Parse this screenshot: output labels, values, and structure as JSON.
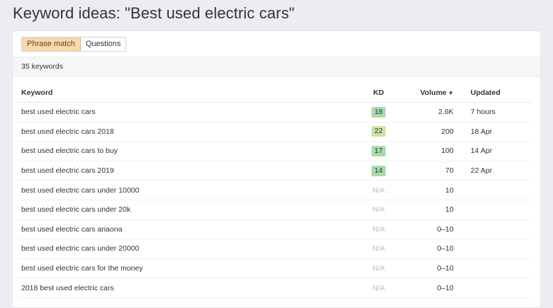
{
  "page": {
    "title": "Keyword ideas: \"Best used electric cars\""
  },
  "tabs": [
    {
      "label": "Phrase match",
      "active": true
    },
    {
      "label": "Questions",
      "active": false
    }
  ],
  "summary": {
    "count_text": "35 keywords"
  },
  "table": {
    "headers": {
      "keyword": "Keyword",
      "kd": "KD",
      "volume": "Volume",
      "volume_sort_icon": "caret-down-icon",
      "updated": "Updated"
    },
    "rows": [
      {
        "keyword": "best used electric cars",
        "kd": "18",
        "kd_color": "#a8dcae",
        "volume": "2.6K",
        "volume_muted": false,
        "updated": "7 hours"
      },
      {
        "keyword": "best used electric cars 2018",
        "kd": "22",
        "kd_color": "#cfe4a1",
        "volume": "200",
        "volume_muted": false,
        "updated": "18 Apr"
      },
      {
        "keyword": "best used electric cars to buy",
        "kd": "17",
        "kd_color": "#a8dcae",
        "volume": "100",
        "volume_muted": false,
        "updated": "14 Apr"
      },
      {
        "keyword": "best used electric cars 2019",
        "kd": "14",
        "kd_color": "#a8dcae",
        "volume": "70",
        "volume_muted": false,
        "updated": "22 Apr"
      },
      {
        "keyword": "best used electric cars under 10000",
        "kd": "N/A",
        "kd_color": "",
        "volume": "10",
        "volume_muted": false,
        "updated": ""
      },
      {
        "keyword": "best used electric cars under 20k",
        "kd": "N/A",
        "kd_color": "",
        "volume": "10",
        "volume_muted": false,
        "updated": ""
      },
      {
        "keyword": "best used electric cars ariaona",
        "kd": "N/A",
        "kd_color": "",
        "volume": "0–10",
        "volume_muted": true,
        "updated": ""
      },
      {
        "keyword": "best used electric cars under 20000",
        "kd": "N/A",
        "kd_color": "",
        "volume": "0–10",
        "volume_muted": true,
        "updated": ""
      },
      {
        "keyword": "best used electric cars for the money",
        "kd": "N/A",
        "kd_color": "",
        "volume": "0–10",
        "volume_muted": true,
        "updated": ""
      },
      {
        "keyword": "2018 best used electric cars",
        "kd": "N/A",
        "kd_color": "",
        "volume": "0–10",
        "volume_muted": true,
        "updated": ""
      }
    ]
  }
}
